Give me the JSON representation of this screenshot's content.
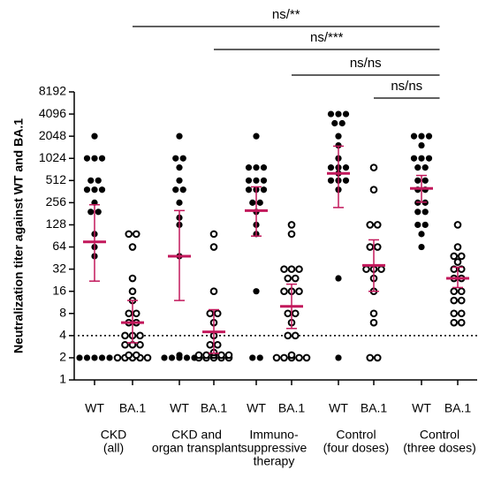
{
  "chart_data": {
    "type": "dotplot",
    "y_label": "Neutralization titer against WT and BA.1",
    "yscale": "log2",
    "ylim": [
      1,
      8192
    ],
    "yticks": [
      1,
      2,
      4,
      8,
      16,
      32,
      64,
      128,
      256,
      512,
      1024,
      2048,
      4096,
      8192
    ],
    "reference_line": 4,
    "color": "#000000",
    "mean_color": "#c2185b",
    "categories": [
      "WT",
      "BA.1",
      "WT",
      "BA.1",
      "WT",
      "BA.1",
      "WT",
      "BA.1",
      "WT",
      "BA.1"
    ],
    "groups": [
      [
        "CKD",
        "(all)"
      ],
      [
        "CKD and",
        "organ transplant"
      ],
      [
        "Immuno-",
        "suppressive",
        "therapy"
      ],
      [
        "Control",
        "(four doses)"
      ],
      [
        "Control",
        "(three doses)"
      ]
    ],
    "columns": [
      {
        "filled": true,
        "values": [
          2048,
          1024,
          1024,
          1024,
          512,
          512,
          384,
          384,
          384,
          256,
          192,
          192,
          96,
          64,
          48,
          2,
          2,
          2,
          2,
          2
        ],
        "mean": 75,
        "ci": [
          22,
          240
        ]
      },
      {
        "filled": false,
        "values": [
          96,
          96,
          64,
          24,
          16,
          12,
          8,
          8,
          6,
          6,
          4,
          4,
          4,
          3,
          3,
          3,
          2,
          2,
          2,
          2,
          2,
          2,
          2
        ],
        "mean": 6,
        "ci": [
          3.2,
          12
        ]
      },
      {
        "filled": true,
        "values": [
          2048,
          1024,
          1024,
          768,
          512,
          384,
          384,
          256,
          160,
          128,
          48,
          2,
          2,
          2,
          2,
          2,
          2
        ],
        "mean": 48,
        "ci": [
          12,
          200
        ]
      },
      {
        "filled": false,
        "values": [
          96,
          64,
          16,
          8,
          8,
          6,
          4,
          3,
          3,
          2,
          2,
          2,
          2,
          2,
          2,
          2,
          2,
          2,
          2,
          2
        ],
        "mean": 4.5,
        "ci": [
          2.3,
          9
        ]
      },
      {
        "filled": true,
        "values": [
          2048,
          768,
          768,
          768,
          512,
          512,
          512,
          384,
          384,
          384,
          256,
          256,
          192,
          128,
          96,
          16,
          2,
          2
        ],
        "mean": 200,
        "ci": [
          90,
          420
        ]
      },
      {
        "filled": false,
        "values": [
          128,
          96,
          32,
          32,
          32,
          24,
          24,
          16,
          16,
          16,
          8,
          8,
          6,
          4,
          4,
          2,
          2,
          2,
          2,
          2,
          2
        ],
        "mean": 10,
        "ci": [
          5,
          20
        ]
      },
      {
        "filled": true,
        "values": [
          4096,
          4096,
          4096,
          3072,
          3072,
          2048,
          1536,
          1024,
          768,
          768,
          768,
          640,
          512,
          512,
          512,
          384,
          24,
          2
        ],
        "mean": 640,
        "ci": [
          220,
          1500
        ]
      },
      {
        "filled": false,
        "values": [
          768,
          384,
          128,
          128,
          64,
          64,
          32,
          32,
          32,
          24,
          16,
          8,
          6,
          2,
          2
        ],
        "mean": 36,
        "ci": [
          16,
          80
        ]
      },
      {
        "filled": true,
        "values": [
          2048,
          2048,
          2048,
          1536,
          1024,
          1024,
          1024,
          768,
          768,
          512,
          512,
          384,
          384,
          256,
          256,
          192,
          192,
          128,
          128,
          96,
          64
        ],
        "mean": 400,
        "ci": [
          260,
          600
        ]
      },
      {
        "filled": false,
        "values": [
          128,
          64,
          48,
          48,
          40,
          32,
          32,
          24,
          24,
          16,
          16,
          12,
          12,
          8,
          8,
          6,
          6
        ],
        "mean": 24,
        "ci": [
          18,
          34
        ]
      }
    ],
    "brackets": [
      {
        "label": "ns/**",
        "from_column": 1,
        "to_group": 4
      },
      {
        "label": "ns/***",
        "from_column": 3,
        "to_group": 4
      },
      {
        "label": "ns/ns",
        "from_column": 5,
        "to_group": 4
      },
      {
        "label": "ns/ns",
        "from_column": 7,
        "to_group": 4
      }
    ]
  }
}
